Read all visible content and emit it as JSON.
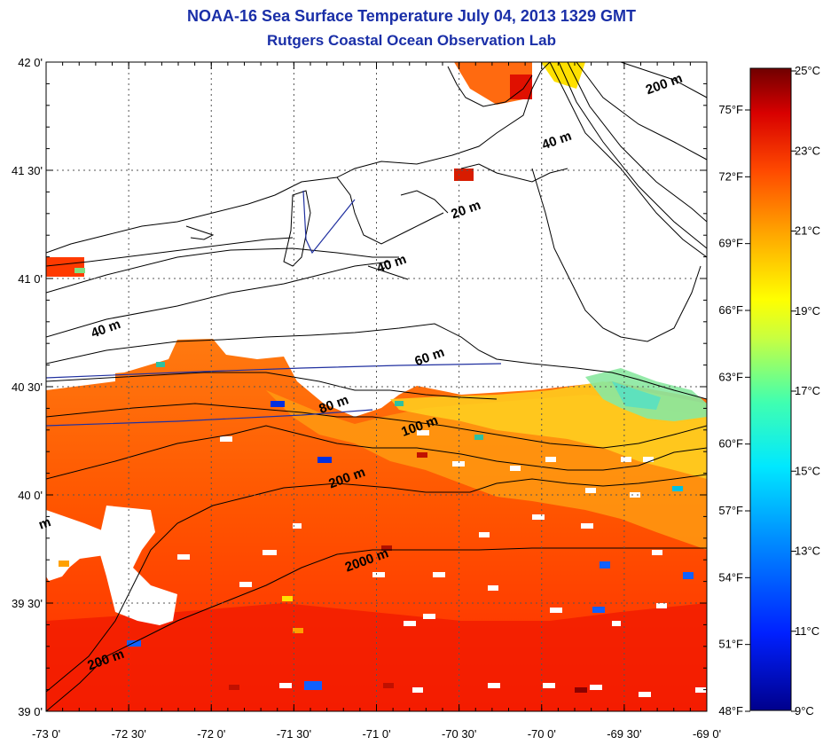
{
  "title": "NOAA-16 Sea Surface Temperature July 04, 2013 1329 GMT",
  "subtitle": "Rutgers Coastal Ocean Observation Lab",
  "map": {
    "lon_range": [
      -73.0,
      -69.0
    ],
    "lat_range": [
      39.0,
      42.0
    ],
    "lon_ticks": [
      {
        "value": -73.0,
        "label": "-73 0'"
      },
      {
        "value": -72.5,
        "label": "-72 30'"
      },
      {
        "value": -72.0,
        "label": "-72 0'"
      },
      {
        "value": -71.5,
        "label": "-71 30'"
      },
      {
        "value": -71.0,
        "label": "-71 0'"
      },
      {
        "value": -70.5,
        "label": "-70 30'"
      },
      {
        "value": -70.0,
        "label": "-70 0'"
      },
      {
        "value": -69.5,
        "label": "-69 30'"
      },
      {
        "value": -69.0,
        "label": "-69 0'"
      }
    ],
    "lat_ticks": [
      {
        "value": 42.0,
        "label": "42 0'"
      },
      {
        "value": 41.5,
        "label": "41 30'"
      },
      {
        "value": 41.0,
        "label": "41 0'"
      },
      {
        "value": 40.5,
        "label": "40 30'"
      },
      {
        "value": 40.0,
        "label": "40 0'"
      },
      {
        "value": 39.5,
        "label": "39 30'"
      },
      {
        "value": 39.0,
        "label": "39 0'"
      }
    ],
    "grid": "dotted",
    "contour_labels": [
      {
        "text": "200 m",
        "lon": -69.25,
        "lat": 41.88
      },
      {
        "text": "40 m",
        "lon": -69.9,
        "lat": 41.62
      },
      {
        "text": "20 m",
        "lon": -70.45,
        "lat": 41.3
      },
      {
        "text": "40 m",
        "lon": -70.9,
        "lat": 41.05
      },
      {
        "text": "40 m",
        "lon": -72.63,
        "lat": 40.75
      },
      {
        "text": "60 m",
        "lon": -70.67,
        "lat": 40.62
      },
      {
        "text": "80 m",
        "lon": -71.25,
        "lat": 40.4
      },
      {
        "text": "100 m",
        "lon": -70.73,
        "lat": 40.3
      },
      {
        "text": "200 m",
        "lon": -71.17,
        "lat": 40.06
      },
      {
        "text": "2000 m",
        "lon": -71.05,
        "lat": 39.68
      },
      {
        "text": "200 m",
        "lon": -72.63,
        "lat": 39.22
      },
      {
        "text": "m",
        "lon": -73.0,
        "lat": 39.85
      }
    ]
  },
  "colorbar": {
    "celsius_labels": [
      "25°C",
      "23°C",
      "21°C",
      "19°C",
      "17°C",
      "15°C",
      "13°C",
      "11°C",
      "9°C"
    ],
    "fahrenheit_labels": [
      "75°F",
      "72°F",
      "69°F",
      "66°F",
      "63°F",
      "60°F",
      "57°F",
      "54°F",
      "51°F",
      "48°F"
    ],
    "colors": [
      "#7a0000",
      "#c00000",
      "#ff1e00",
      "#ff6a00",
      "#ffb000",
      "#ffff00",
      "#b4ff4a",
      "#40ffb8",
      "#00e0ff",
      "#0090ff",
      "#0030ff",
      "#000090"
    ]
  }
}
